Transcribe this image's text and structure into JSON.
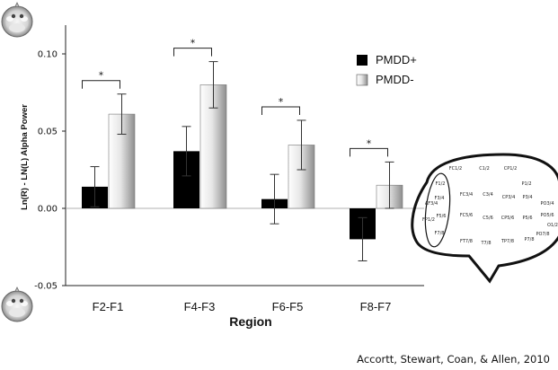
{
  "chart_data": {
    "type": "bar",
    "title": "",
    "xlabel": "Region",
    "ylabel": "Ln(R) - LN(L) Alpha Power",
    "ylim": [
      -0.05,
      0.12
    ],
    "yticks": [
      "-0.05",
      "0.00",
      "0.05",
      "0.10"
    ],
    "categories": [
      "F2-F1",
      "F4-F3",
      "F6-F5",
      "F8-F7"
    ],
    "series": [
      {
        "name": "PMDD+",
        "values": [
          0.014,
          0.037,
          0.006,
          -0.02
        ],
        "errors": [
          0.013,
          0.016,
          0.016,
          0.014
        ],
        "color": "#000000"
      },
      {
        "name": "PMDD-",
        "values": [
          0.061,
          0.08,
          0.041,
          0.015
        ],
        "errors": [
          0.013,
          0.015,
          0.016,
          0.015
        ],
        "color": "gradient-white-gray"
      }
    ],
    "significance": [
      "*",
      "*",
      "*",
      "*"
    ],
    "legend_position": "top-right",
    "grid": false
  },
  "brain_map": {
    "labels": [
      "FC1/2",
      "C1/2",
      "CP1/2",
      "F1/2",
      "P1/2",
      "AF3/4",
      "F3/4",
      "FC3/4",
      "C3/4",
      "CP3/4",
      "P3/4",
      "PO3/4",
      "FP1/2",
      "F5/6",
      "FC5/6",
      "C5/6",
      "CP5/6",
      "P5/6",
      "PO5/6",
      "O1/2",
      "F7/8",
      "FT7/8",
      "T7/8",
      "TP7/8",
      "P7/8",
      "PO7/8"
    ]
  },
  "citation": "Accortt, Stewart, Coan, & Allen, 2010",
  "icons": [
    "scalp-map-icon",
    "scalp-map-icon"
  ]
}
